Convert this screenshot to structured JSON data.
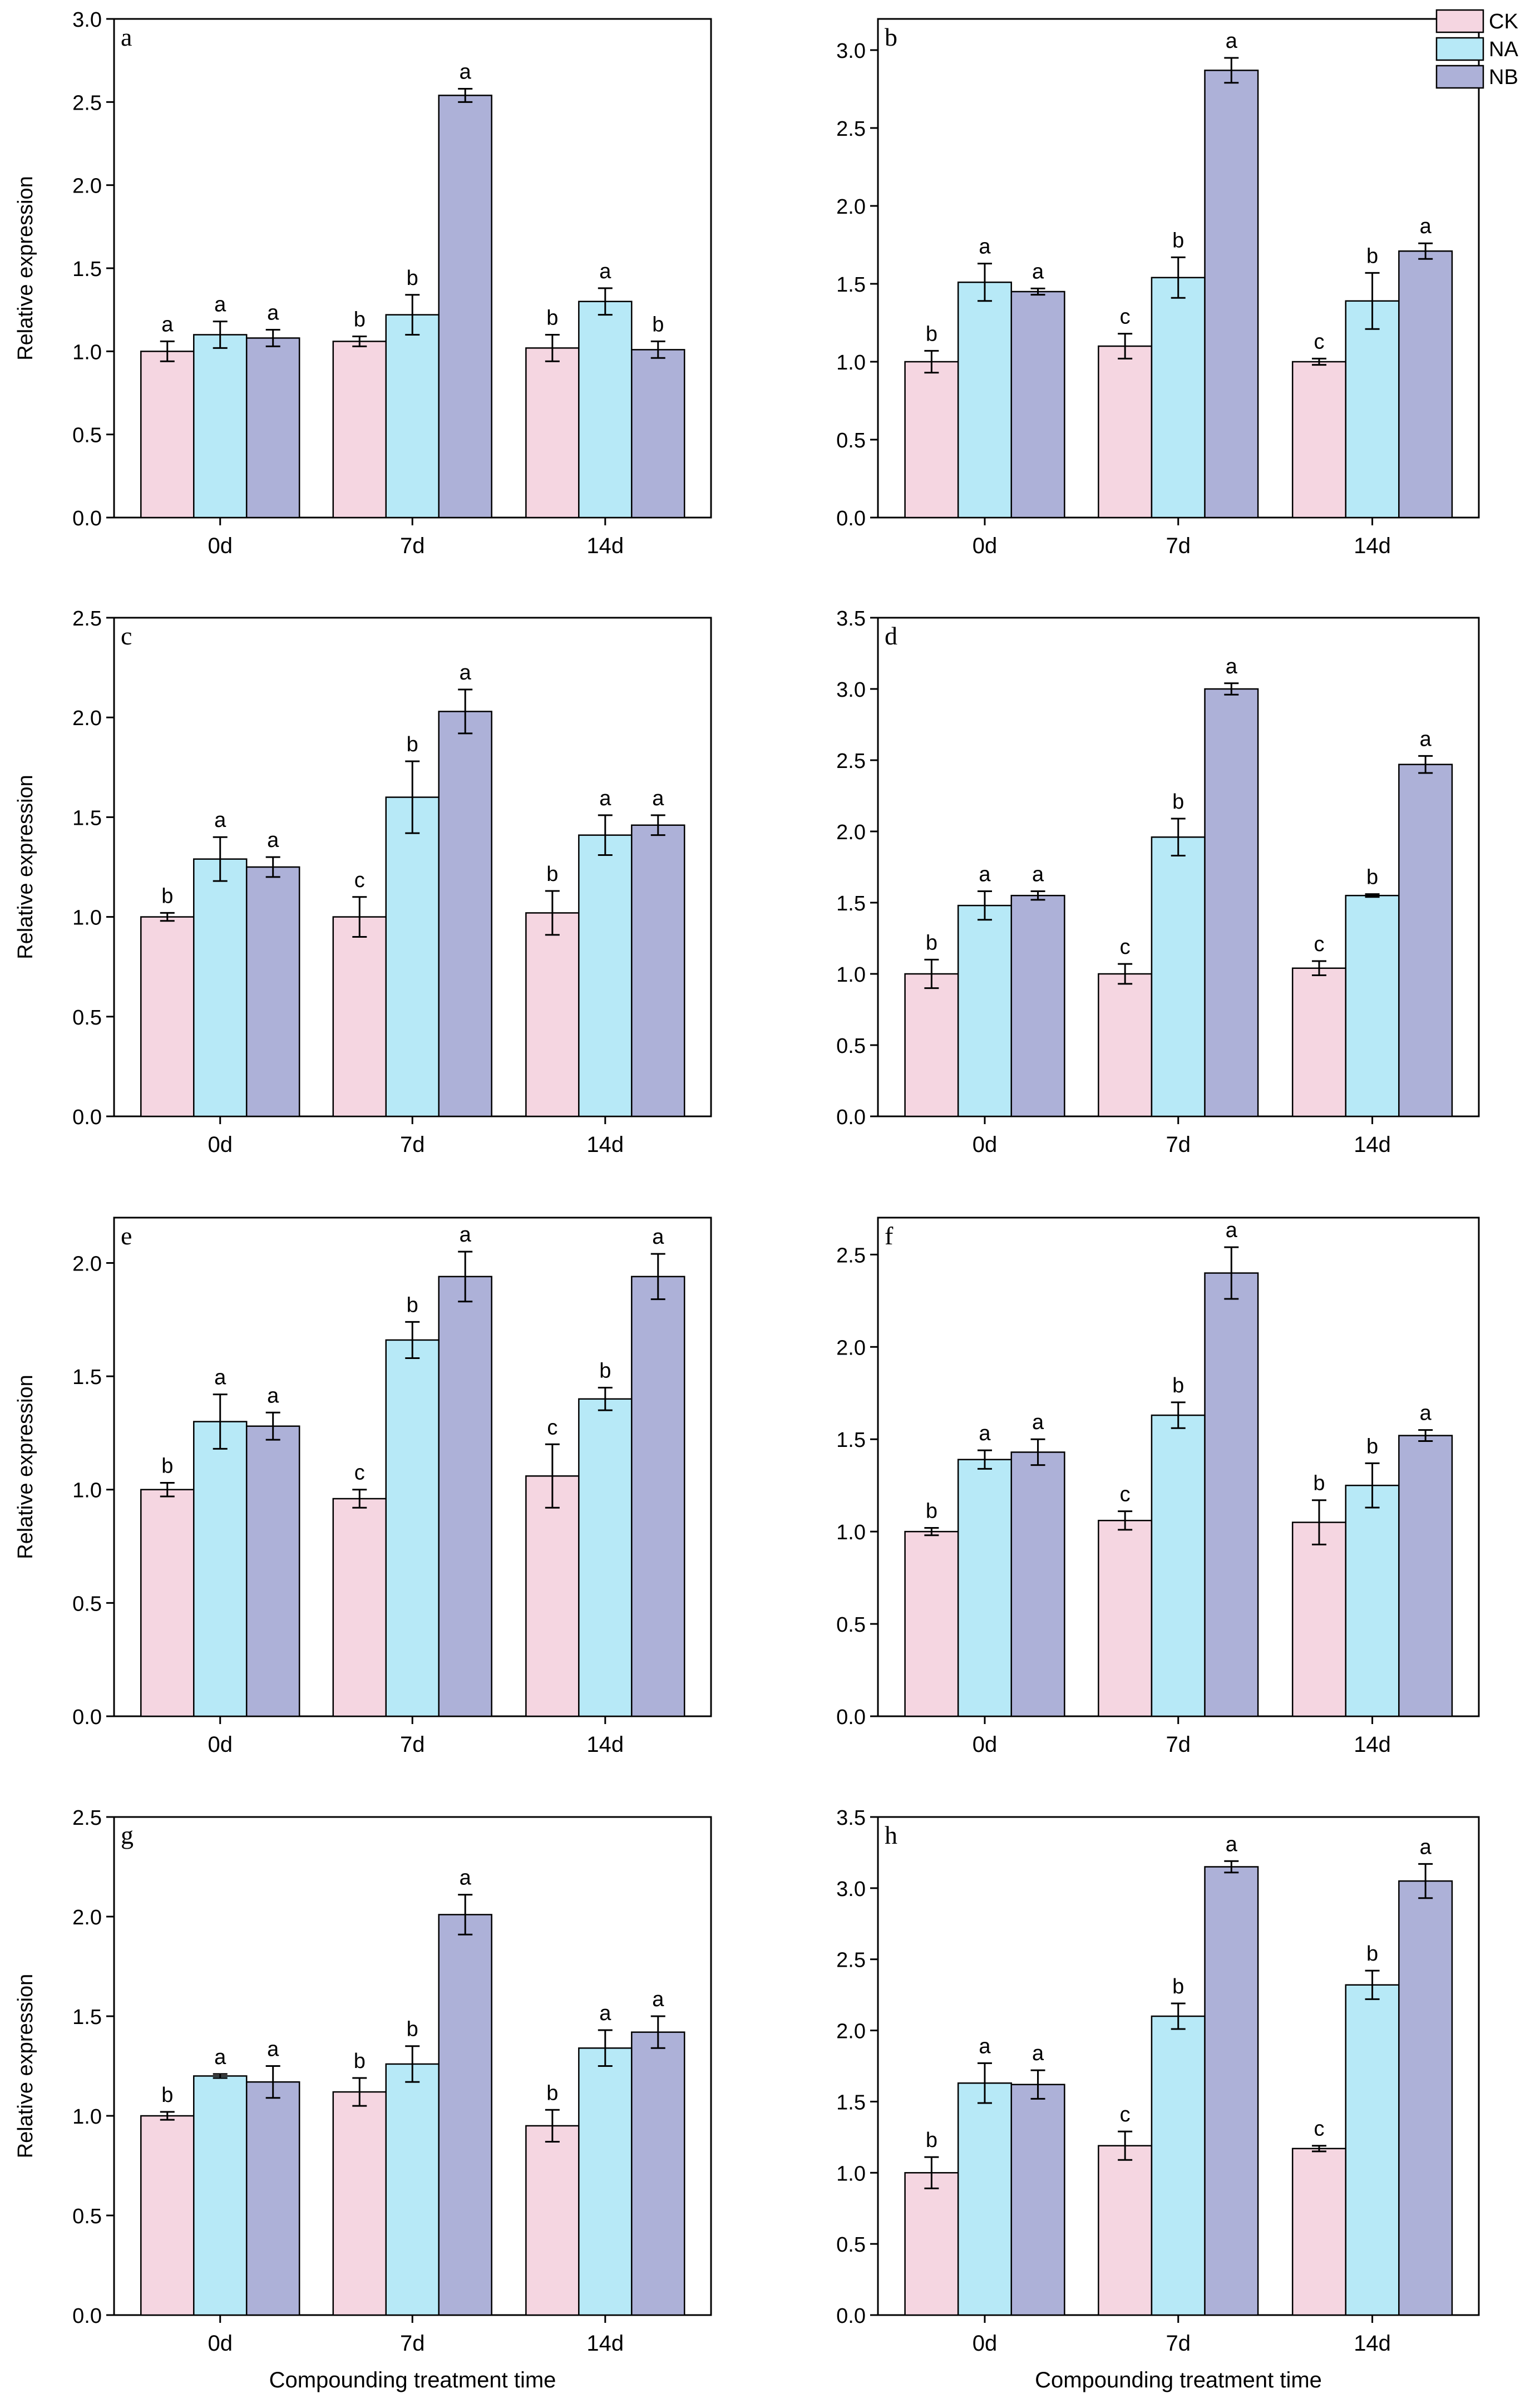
{
  "legend": {
    "entries": [
      {
        "name": "CK",
        "color": "#F5D6E1"
      },
      {
        "name": "NA",
        "color": "#B7E9F7"
      },
      {
        "name": "NB",
        "color": "#ADB1D8"
      }
    ]
  },
  "chart_data": [
    {
      "type": "bar",
      "panel": "a",
      "categories": [
        "0d",
        "7d",
        "14d"
      ],
      "ylim": [
        0,
        3.0
      ],
      "yticks": [
        "0.0",
        "0.5",
        "1.0",
        "1.5",
        "2.0",
        "2.5",
        "3.0"
      ],
      "ylabel": "Relative expression",
      "xlabel": "",
      "series": [
        {
          "name": "CK",
          "values": [
            1.0,
            1.06,
            1.02
          ],
          "errors": [
            0.06,
            0.03,
            0.08
          ],
          "labels": [
            "a",
            "b",
            "b"
          ]
        },
        {
          "name": "NA",
          "values": [
            1.1,
            1.22,
            1.3
          ],
          "errors": [
            0.08,
            0.12,
            0.08
          ],
          "labels": [
            "a",
            "b",
            "a"
          ]
        },
        {
          "name": "NB",
          "values": [
            1.08,
            2.54,
            1.01
          ],
          "errors": [
            0.05,
            0.04,
            0.05
          ],
          "labels": [
            "a",
            "a",
            "b"
          ]
        }
      ]
    },
    {
      "type": "bar",
      "panel": "b",
      "categories": [
        "0d",
        "7d",
        "14d"
      ],
      "ylim": [
        0,
        3.2
      ],
      "yticks": [
        "0.0",
        "0.5",
        "1.0",
        "1.5",
        "2.0",
        "2.5",
        "3.0"
      ],
      "ylabel": "",
      "xlabel": "",
      "series": [
        {
          "name": "CK",
          "values": [
            1.0,
            1.1,
            1.0
          ],
          "errors": [
            0.07,
            0.08,
            0.02
          ],
          "labels": [
            "b",
            "c",
            "c"
          ]
        },
        {
          "name": "NA",
          "values": [
            1.51,
            1.54,
            1.39
          ],
          "errors": [
            0.12,
            0.13,
            0.18
          ],
          "labels": [
            "a",
            "b",
            "b"
          ]
        },
        {
          "name": "NB",
          "values": [
            1.45,
            2.87,
            1.71
          ],
          "errors": [
            0.02,
            0.08,
            0.05
          ],
          "labels": [
            "a",
            "a",
            "a"
          ]
        }
      ]
    },
    {
      "type": "bar",
      "panel": "c",
      "categories": [
        "0d",
        "7d",
        "14d"
      ],
      "ylim": [
        0,
        2.5
      ],
      "yticks": [
        "0.0",
        "0.5",
        "1.0",
        "1.5",
        "2.0",
        "2.5"
      ],
      "ylabel": "Relative expression",
      "xlabel": "",
      "series": [
        {
          "name": "CK",
          "values": [
            1.0,
            1.0,
            1.02
          ],
          "errors": [
            0.02,
            0.1,
            0.11
          ],
          "labels": [
            "b",
            "c",
            "b"
          ]
        },
        {
          "name": "NA",
          "values": [
            1.29,
            1.6,
            1.41
          ],
          "errors": [
            0.11,
            0.18,
            0.1
          ],
          "labels": [
            "a",
            "b",
            "a"
          ]
        },
        {
          "name": "NB",
          "values": [
            1.25,
            2.03,
            1.46
          ],
          "errors": [
            0.05,
            0.11,
            0.05
          ],
          "labels": [
            "a",
            "a",
            "a"
          ]
        }
      ]
    },
    {
      "type": "bar",
      "panel": "d",
      "categories": [
        "0d",
        "7d",
        "14d"
      ],
      "ylim": [
        0,
        3.5
      ],
      "yticks": [
        "0.0",
        "0.5",
        "1.0",
        "1.5",
        "2.0",
        "2.5",
        "3.0",
        "3.5"
      ],
      "ylabel": "",
      "xlabel": "",
      "series": [
        {
          "name": "CK",
          "values": [
            1.0,
            1.0,
            1.04
          ],
          "errors": [
            0.1,
            0.07,
            0.05
          ],
          "labels": [
            "b",
            "c",
            "c"
          ]
        },
        {
          "name": "NA",
          "values": [
            1.48,
            1.96,
            1.55
          ],
          "errors": [
            0.1,
            0.13,
            0.01
          ],
          "labels": [
            "a",
            "b",
            "b"
          ]
        },
        {
          "name": "NB",
          "values": [
            1.55,
            3.0,
            2.47
          ],
          "errors": [
            0.03,
            0.04,
            0.06
          ],
          "labels": [
            "a",
            "a",
            "a"
          ]
        }
      ]
    },
    {
      "type": "bar",
      "panel": "e",
      "categories": [
        "0d",
        "7d",
        "14d"
      ],
      "ylim": [
        0,
        2.2
      ],
      "yticks": [
        "0.0",
        "0.5",
        "1.0",
        "1.5",
        "2.0"
      ],
      "ylabel": "Relative expression",
      "xlabel": "",
      "series": [
        {
          "name": "CK",
          "values": [
            1.0,
            0.96,
            1.06
          ],
          "errors": [
            0.03,
            0.04,
            0.14
          ],
          "labels": [
            "b",
            "c",
            "c"
          ]
        },
        {
          "name": "NA",
          "values": [
            1.3,
            1.66,
            1.4
          ],
          "errors": [
            0.12,
            0.08,
            0.05
          ],
          "labels": [
            "a",
            "b",
            "b"
          ]
        },
        {
          "name": "NB",
          "values": [
            1.28,
            1.94,
            1.94
          ],
          "errors": [
            0.06,
            0.11,
            0.1
          ],
          "labels": [
            "a",
            "a",
            "a"
          ]
        }
      ]
    },
    {
      "type": "bar",
      "panel": "f",
      "categories": [
        "0d",
        "7d",
        "14d"
      ],
      "ylim": [
        0,
        2.7
      ],
      "yticks": [
        "0.0",
        "0.5",
        "1.0",
        "1.5",
        "2.0",
        "2.5"
      ],
      "ylabel": "",
      "xlabel": "",
      "series": [
        {
          "name": "CK",
          "values": [
            1.0,
            1.06,
            1.05
          ],
          "errors": [
            0.02,
            0.05,
            0.12
          ],
          "labels": [
            "b",
            "c",
            "b"
          ]
        },
        {
          "name": "NA",
          "values": [
            1.39,
            1.63,
            1.25
          ],
          "errors": [
            0.05,
            0.07,
            0.12
          ],
          "labels": [
            "a",
            "b",
            "b"
          ]
        },
        {
          "name": "NB",
          "values": [
            1.43,
            2.4,
            1.52
          ],
          "errors": [
            0.07,
            0.14,
            0.03
          ],
          "labels": [
            "a",
            "a",
            "a"
          ]
        }
      ]
    },
    {
      "type": "bar",
      "panel": "g",
      "categories": [
        "0d",
        "7d",
        "14d"
      ],
      "ylim": [
        0,
        2.5
      ],
      "yticks": [
        "0.0",
        "0.5",
        "1.0",
        "1.5",
        "2.0",
        "2.5"
      ],
      "ylabel": "Relative expression",
      "xlabel": "Compounding treatment time",
      "series": [
        {
          "name": "CK",
          "values": [
            1.0,
            1.12,
            0.95
          ],
          "errors": [
            0.02,
            0.07,
            0.08
          ],
          "labels": [
            "b",
            "b",
            "b"
          ]
        },
        {
          "name": "NA",
          "values": [
            1.2,
            1.26,
            1.34
          ],
          "errors": [
            0.01,
            0.09,
            0.09
          ],
          "labels": [
            "a",
            "b",
            "a"
          ]
        },
        {
          "name": "NB",
          "values": [
            1.17,
            2.01,
            1.42
          ],
          "errors": [
            0.08,
            0.1,
            0.08
          ],
          "labels": [
            "a",
            "a",
            "a"
          ]
        }
      ]
    },
    {
      "type": "bar",
      "panel": "h",
      "categories": [
        "0d",
        "7d",
        "14d"
      ],
      "ylim": [
        0,
        3.5
      ],
      "yticks": [
        "0.0",
        "0.5",
        "1.0",
        "1.5",
        "2.0",
        "2.5",
        "3.0",
        "3.5"
      ],
      "ylabel": "",
      "xlabel": "Compounding treatment time",
      "series": [
        {
          "name": "CK",
          "values": [
            1.0,
            1.19,
            1.17
          ],
          "errors": [
            0.11,
            0.1,
            0.02
          ],
          "labels": [
            "b",
            "c",
            "c"
          ]
        },
        {
          "name": "NA",
          "values": [
            1.63,
            2.1,
            2.32
          ],
          "errors": [
            0.14,
            0.09,
            0.1
          ],
          "labels": [
            "a",
            "b",
            "b"
          ]
        },
        {
          "name": "NB",
          "values": [
            1.62,
            3.15,
            3.05
          ],
          "errors": [
            0.1,
            0.04,
            0.12
          ],
          "labels": [
            "a",
            "a",
            "a"
          ]
        }
      ]
    }
  ]
}
